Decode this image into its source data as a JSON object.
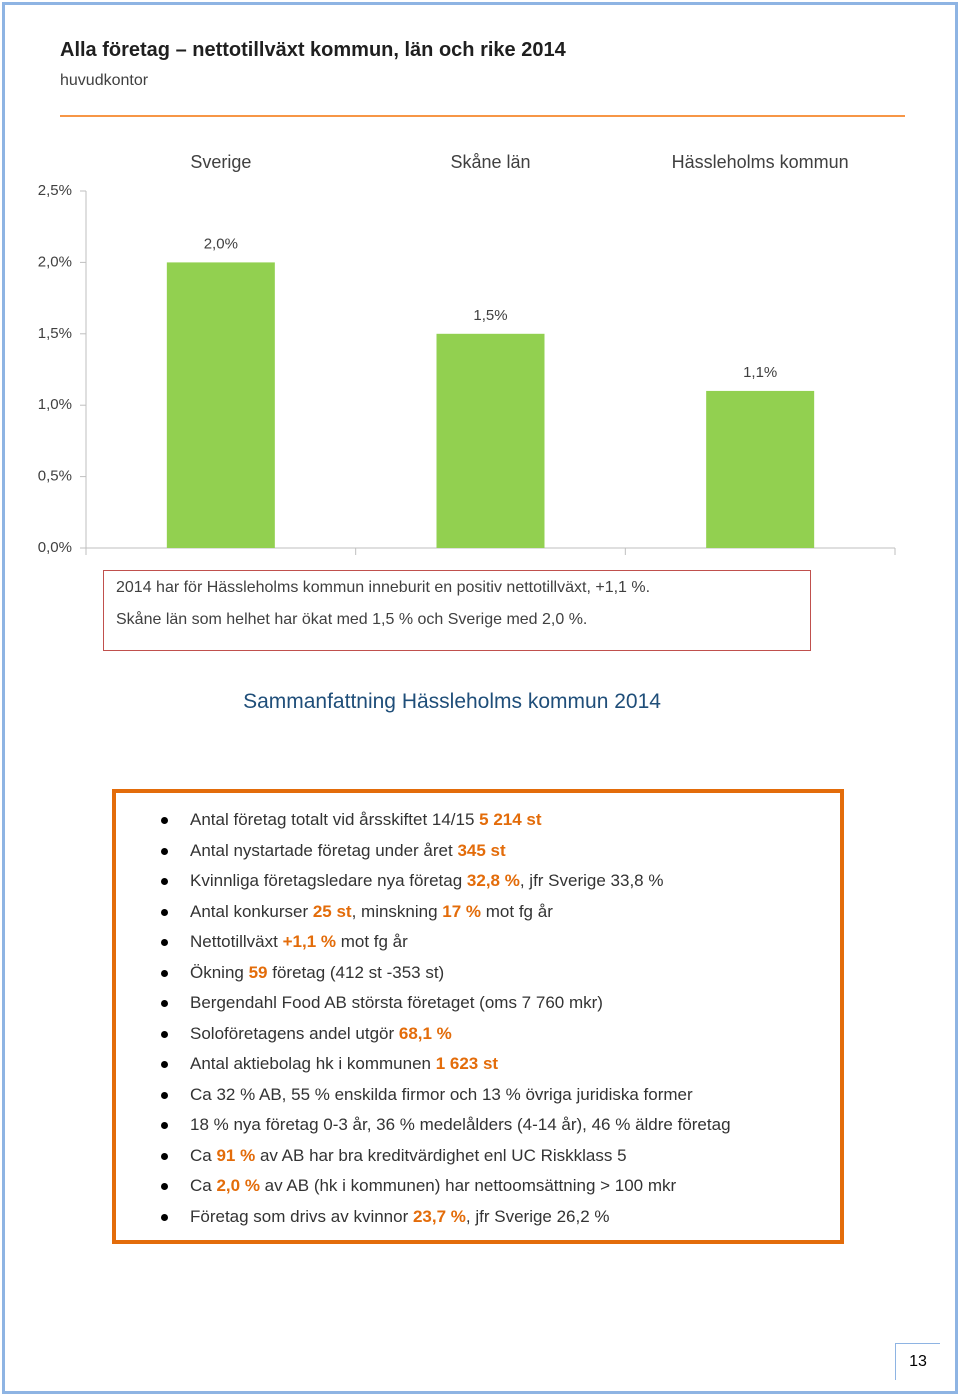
{
  "header": {
    "title": "Alla företag – nettotillväxt kommun, län och rike 2014",
    "subtitle": "huvudkontor"
  },
  "chart_data": {
    "type": "bar",
    "categories": [
      "Sverige",
      "Skåne län",
      "Hässleholms kommun"
    ],
    "values": [
      2.0,
      1.5,
      1.1
    ],
    "value_labels": [
      "2,0%",
      "1,5%",
      "1,1%"
    ],
    "color": "#92d050",
    "ylim": [
      0,
      2.5
    ],
    "yticks": [
      {
        "value": 0,
        "label": "0,0%"
      },
      {
        "value": 0.5,
        "label": "0,5%"
      },
      {
        "value": 1.0,
        "label": "1,0%"
      },
      {
        "value": 1.5,
        "label": "1,5%"
      },
      {
        "value": 2.0,
        "label": "2,0%"
      },
      {
        "value": 2.5,
        "label": "2,5%"
      }
    ],
    "grid": false
  },
  "note": {
    "lines": [
      "2014 har för Hässleholms kommun inneburit en positiv nettotillväxt, +1,1 %.",
      "Skåne län som helhet har ökat med 1,5 % och Sverige med 2,0 %."
    ]
  },
  "summary": {
    "title": "Sammanfattning Hässleholms kommun 2014",
    "highlight_color": "#e36c0a",
    "items": [
      [
        "Antal företag totalt vid årsskiftet 14/15 ",
        "5 214 st"
      ],
      [
        "Antal nystartade företag under året ",
        "345 st"
      ],
      [
        "Kvinnliga företagsledare nya företag ",
        "32,8 %",
        ", jfr Sverige 33,8 %"
      ],
      [
        "Antal konkurser ",
        "25 st",
        ", minskning ",
        "17 %",
        " mot fg år"
      ],
      [
        "Nettotillväxt ",
        "+1,1 %",
        " mot fg år"
      ],
      [
        "Ökning ",
        "59",
        " företag (412 st -353 st)"
      ],
      [
        "Bergendahl Food AB största företaget (oms 7 760 mkr)"
      ],
      [
        "Soloföretagens andel utgör ",
        "68,1 %"
      ],
      [
        "Antal aktiebolag hk i kommunen ",
        "1 623 st"
      ],
      [
        "Ca 32 % AB, 55 % enskilda firmor och 13 % övriga juridiska former"
      ],
      [
        "18 % nya företag 0-3 år, 36 % medelålders (4-14 år), 46 % äldre företag"
      ],
      [
        "Ca ",
        "91 %",
        " av AB har bra kreditvärdighet enl UC Riskklass 5"
      ],
      [
        "Ca ",
        "2,0 %",
        " av AB (hk i kommunen) har nettoomsättning > 100 mkr"
      ],
      [
        "Företag som drivs av kvinnor ",
        "23,7 %",
        ", jfr Sverige 26,2 %"
      ]
    ]
  },
  "page_number": "13"
}
